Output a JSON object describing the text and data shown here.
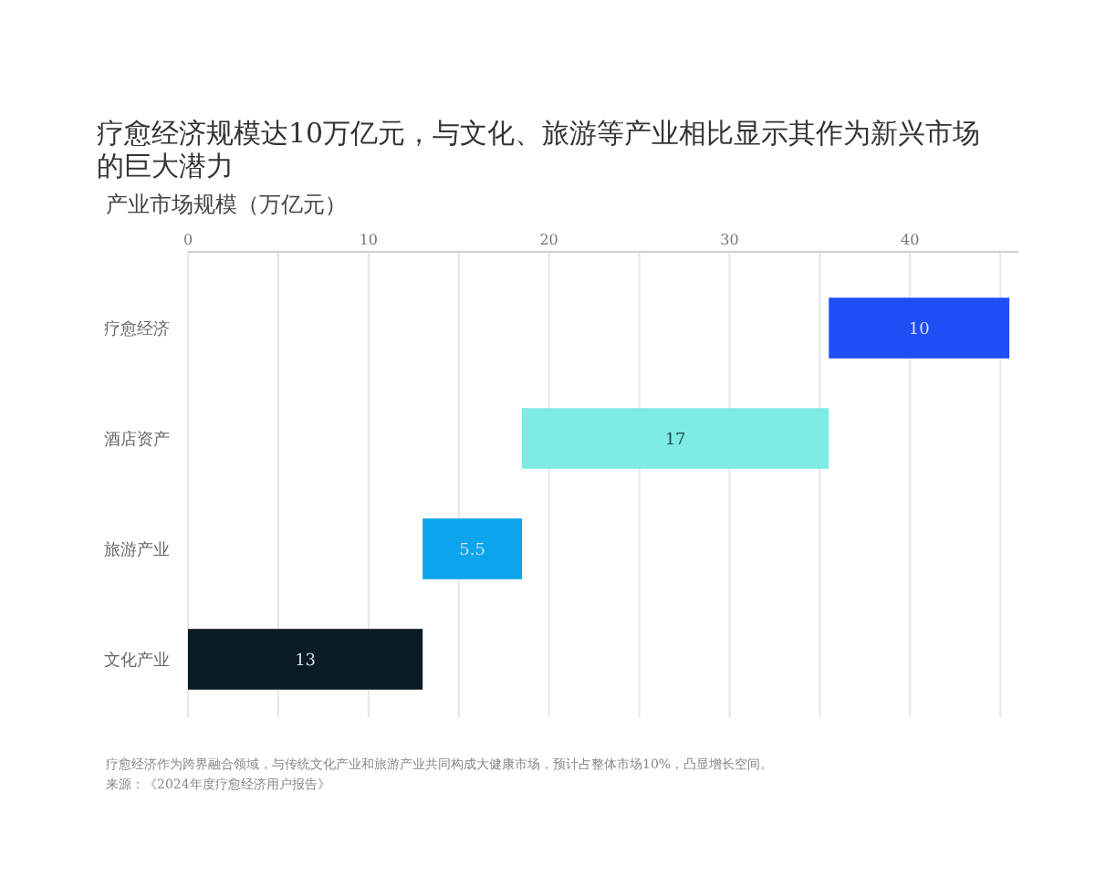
{
  "chart_data": {
    "type": "bar",
    "orientation": "horizontal",
    "title": "疗愈经济规模达10万亿元，与文化、旅游等产业相比显示其作为新兴市场的巨大潜力",
    "subtitle": "产业市场规模（万亿元）",
    "categories": [
      "疗愈经济",
      "酒店资产",
      "旅游产业",
      "文化产业"
    ],
    "values": [
      10,
      17,
      5.5,
      13
    ],
    "base": [
      35.5,
      18.5,
      13,
      0
    ],
    "colors": [
      "#1f4ef5",
      "#7eece4",
      "#0aa5eb",
      "#0b1b26"
    ],
    "xlim": [
      0,
      46
    ],
    "xticks": [
      0,
      {
        "value": 5,
        "label": null
      },
      10,
      {
        "value": 15,
        "label": null
      },
      20,
      {
        "value": 25,
        "label": null
      },
      30,
      {
        "value": 35,
        "label": null
      },
      40,
      {
        "value": 45,
        "label": null
      }
    ],
    "grid": "x",
    "data_labels": true,
    "annotations": [
      "疗愈经济作为跨界融合领域，与传统文化产业和旅游产业共同构成大健康市场，预计占整体市场10%，凸显增长空间。",
      "来源：《2024年度疗愈经济用户报告》"
    ]
  }
}
